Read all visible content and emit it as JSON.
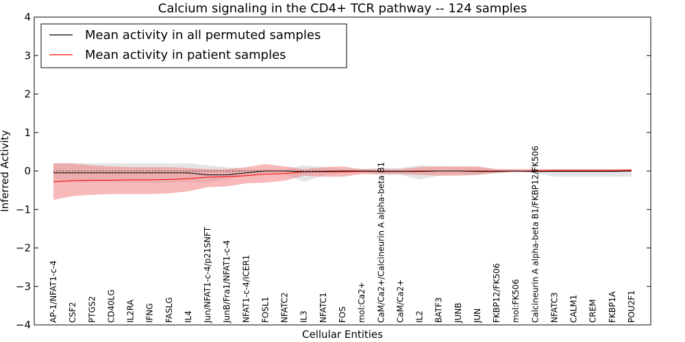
{
  "chart_data": {
    "type": "line",
    "title": "Calcium signaling in the CD4+ TCR pathway -- 124 samples",
    "xlabel": "Cellular Entities",
    "ylabel": "Inferred Activity",
    "ylim": [
      -4,
      4
    ],
    "yticks": [
      -4,
      -3,
      -2,
      -1,
      0,
      1,
      2,
      3,
      4
    ],
    "ytick_labels": [
      "−4",
      "−3",
      "−2",
      "−1",
      "0",
      "1",
      "2",
      "3",
      "4"
    ],
    "reference_line": 0,
    "legend_position": "top-left",
    "categories": [
      "AP-1/NFAT1-c-4",
      "CSF2",
      "PTGS2",
      "CD40LG",
      "IL2RA",
      "IFNG",
      "FASLG",
      "IL4",
      "Jun/NFAT1-c-4/p21SNFT",
      "JunB/Fra1/NFAT1-c-4",
      "NFAT1-c-4/ICER1",
      "FOSL1",
      "NFATC2",
      "IL3",
      "NFATC1",
      "FOS",
      "mol:Ca2+",
      "CaM/Ca2+/Calcineurin A alpha-beta B1",
      "CaM/Ca2+",
      "IL2",
      "BATF3",
      "JUNB",
      "JUN",
      "FKBP12/FK506",
      "mol:FK506",
      "Calcineurin A alpha-beta B1/FKBP12/FK506",
      "NFATC3",
      "CALM1",
      "CREM",
      "FKBP1A",
      "POU2F1"
    ],
    "series": [
      {
        "name": "Mean activity in all permuted samples",
        "color": "#000000",
        "band_color": "#d3d3d3",
        "values": [
          -0.05,
          -0.05,
          -0.05,
          -0.05,
          -0.05,
          -0.05,
          -0.05,
          -0.05,
          -0.1,
          -0.1,
          -0.05,
          0.0,
          0.0,
          -0.02,
          -0.01,
          0.0,
          0.0,
          -0.01,
          -0.01,
          -0.01,
          0.0,
          0.0,
          -0.01,
          -0.01,
          0.0,
          -0.01,
          -0.01,
          -0.01,
          -0.01,
          -0.01,
          0.0
        ],
        "upper": [
          0.2,
          0.2,
          0.2,
          0.2,
          0.2,
          0.2,
          0.2,
          0.2,
          0.15,
          0.1,
          0.05,
          0.05,
          0.05,
          0.15,
          0.1,
          0.05,
          0.05,
          0.08,
          0.08,
          0.15,
          0.12,
          0.1,
          0.1,
          0.05,
          0.02,
          0.03,
          0.05,
          0.05,
          0.05,
          0.05,
          0.05
        ],
        "lower": [
          -0.3,
          -0.3,
          -0.3,
          -0.3,
          -0.3,
          -0.3,
          -0.3,
          -0.3,
          -0.3,
          -0.2,
          -0.15,
          -0.05,
          -0.08,
          -0.28,
          -0.12,
          -0.05,
          -0.05,
          -0.1,
          -0.1,
          -0.22,
          -0.12,
          -0.1,
          -0.1,
          -0.06,
          -0.02,
          -0.05,
          -0.15,
          -0.15,
          -0.15,
          -0.15,
          -0.15
        ]
      },
      {
        "name": "Mean activity in patient samples",
        "color": "#ff0000",
        "band_color": "#f08080",
        "values": [
          -0.28,
          -0.25,
          -0.24,
          -0.24,
          -0.23,
          -0.23,
          -0.22,
          -0.2,
          -0.16,
          -0.15,
          -0.12,
          -0.08,
          -0.07,
          -0.02,
          -0.02,
          -0.02,
          -0.01,
          -0.01,
          -0.01,
          0.0,
          0.0,
          0.0,
          0.0,
          0.0,
          0.0,
          0.0,
          0.01,
          0.01,
          0.01,
          0.01,
          0.02
        ],
        "upper": [
          0.2,
          0.2,
          0.15,
          0.12,
          0.1,
          0.1,
          0.1,
          0.08,
          0.05,
          0.05,
          0.1,
          0.18,
          0.12,
          0.05,
          0.1,
          0.12,
          0.05,
          0.05,
          0.05,
          0.1,
          0.12,
          0.12,
          0.12,
          0.05,
          0.05,
          0.05,
          0.05,
          0.05,
          0.05,
          0.05,
          0.05
        ],
        "lower": [
          -0.75,
          -0.65,
          -0.62,
          -0.6,
          -0.6,
          -0.6,
          -0.58,
          -0.53,
          -0.42,
          -0.4,
          -0.32,
          -0.3,
          -0.25,
          -0.12,
          -0.15,
          -0.15,
          -0.08,
          -0.08,
          -0.08,
          -0.1,
          -0.12,
          -0.12,
          -0.1,
          -0.05,
          -0.03,
          -0.03,
          -0.02,
          -0.02,
          -0.02,
          -0.02,
          -0.02
        ]
      }
    ]
  }
}
